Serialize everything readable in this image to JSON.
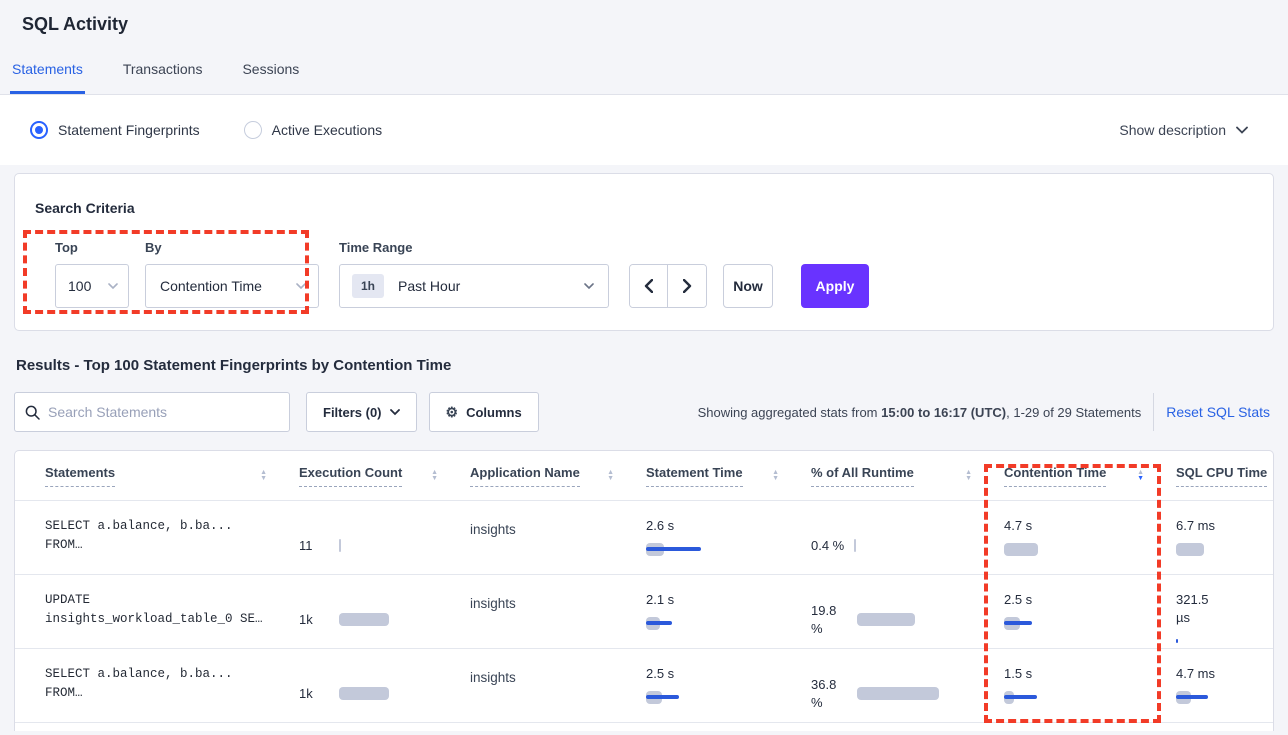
{
  "colors": {
    "accent-blue": "#2962e4",
    "apply-purple": "#6933ff",
    "annotation-red": "#f23b27",
    "bar-gray": "#c3c9da",
    "bar-blue": "#2b59db"
  },
  "page": {
    "title": "SQL Activity"
  },
  "tabs": [
    {
      "label": "Statements",
      "active": true
    },
    {
      "label": "Transactions",
      "active": false
    },
    {
      "label": "Sessions",
      "active": false
    }
  ],
  "view_toggle": {
    "options": [
      {
        "label": "Statement Fingerprints",
        "selected": true
      },
      {
        "label": "Active Executions",
        "selected": false
      }
    ],
    "show_description": "Show description"
  },
  "search_criteria": {
    "heading": "Search Criteria",
    "top": {
      "label": "Top",
      "value": "100"
    },
    "by": {
      "label": "By",
      "value": "Contention Time"
    },
    "time_range": {
      "label": "Time Range",
      "badge": "1h",
      "value": "Past Hour"
    },
    "now_label": "Now",
    "apply_label": "Apply"
  },
  "results": {
    "heading": "Results - Top 100 Statement Fingerprints by Contention Time",
    "search_placeholder": "Search Statements",
    "filters_label": "Filters (0)",
    "columns_label": "Columns",
    "stats_prefix": "Showing aggregated stats from ",
    "stats_range": "15:00 to 16:17 (UTC)",
    "stats_suffix": ", 1-29 of 29 Statements",
    "reset_label": "Reset SQL Stats"
  },
  "table": {
    "columns": [
      {
        "label": "Statements",
        "sort": "none"
      },
      {
        "label": "Execution Count",
        "sort": "none"
      },
      {
        "label": "Application Name",
        "sort": "none"
      },
      {
        "label": "Statement Time",
        "sort": "none"
      },
      {
        "label": "% of All Runtime",
        "sort": "none"
      },
      {
        "label": "Contention Time",
        "sort": "desc"
      },
      {
        "label": "SQL CPU Time",
        "sort": "hidden"
      }
    ],
    "rows": [
      {
        "statement_line1": "SELECT a.balance, b.ba...",
        "statement_line2": "FROM…",
        "execution_count": {
          "text": "11",
          "gray_w": 2,
          "blue_w": 0
        },
        "application_name": "insights",
        "statement_time": {
          "text": "2.6 s",
          "gray_w": 18,
          "blue_w": 55
        },
        "pct_runtime": {
          "text": "0.4 %",
          "gray_w": 2,
          "blue_w": 0
        },
        "contention_time": {
          "text": "4.7 s",
          "gray_w": 34,
          "blue_w": 0
        },
        "sql_cpu_time": {
          "text": "6.7 ms",
          "gray_w": 28,
          "blue_w": 0
        }
      },
      {
        "statement_line1": "UPDATE",
        "statement_line2": "insights_workload_table_0 SE…",
        "execution_count": {
          "text": "1k",
          "gray_w": 50,
          "blue_w": 0
        },
        "application_name": "insights",
        "statement_time": {
          "text": "2.1 s",
          "gray_w": 14,
          "blue_w": 26
        },
        "pct_runtime": {
          "text": "19.8 %",
          "gray_w": 58,
          "blue_w": 0
        },
        "contention_time": {
          "text": "2.5 s",
          "gray_w": 16,
          "blue_w": 28
        },
        "sql_cpu_time": {
          "text": "321.5 µs",
          "gray_w": 0,
          "blue_w": 2
        }
      },
      {
        "statement_line1": "SELECT a.balance, b.ba...",
        "statement_line2": "FROM…",
        "execution_count": {
          "text": "1k",
          "gray_w": 50,
          "blue_w": 0
        },
        "application_name": "insights",
        "statement_time": {
          "text": "2.5 s",
          "gray_w": 16,
          "blue_w": 33
        },
        "pct_runtime": {
          "text": "36.8 %",
          "gray_w": 82,
          "blue_w": 0
        },
        "contention_time": {
          "text": "1.5 s",
          "gray_w": 10,
          "blue_w": 33
        },
        "sql_cpu_time": {
          "text": "4.7 ms",
          "gray_w": 15,
          "blue_w": 32
        }
      }
    ]
  }
}
